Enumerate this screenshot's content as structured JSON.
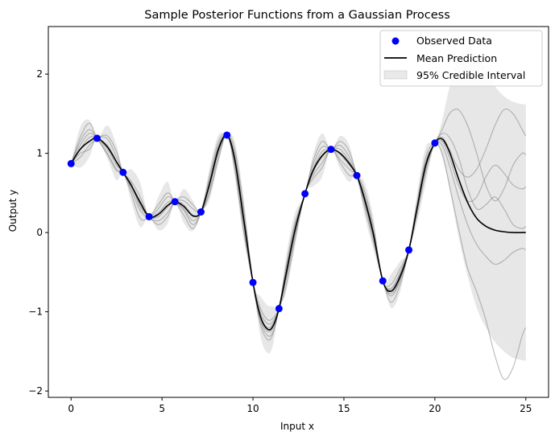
{
  "chart_data": {
    "type": "line",
    "title": "Sample Posterior Functions from a Gaussian Process",
    "xlabel": "Input x",
    "ylabel": "Output y",
    "xlim": [
      -1.25,
      26.25
    ],
    "ylim": [
      -2.08,
      2.6
    ],
    "xticks": [
      0,
      5,
      10,
      15,
      20,
      25
    ],
    "yticks": [
      -2,
      -1,
      0,
      1,
      2
    ],
    "ytick_labels": [
      "−2",
      "−1",
      "0",
      "1",
      "2"
    ],
    "grid": false,
    "legend_position": "top-right",
    "legend": {
      "observed": "Observed Data",
      "mean": "Mean Prediction",
      "interval": "95% Credible Interval"
    },
    "colors": {
      "observed": "#0000ff",
      "mean": "#000000",
      "samples": "#7f7f7f",
      "interval": "#d3d3d3"
    },
    "series": [
      {
        "name": "Observed Data",
        "kind": "scatter",
        "x": [
          0.0,
          1.43,
          2.86,
          4.29,
          5.71,
          7.14,
          8.57,
          10.0,
          11.43,
          12.86,
          14.29,
          15.71,
          17.14,
          18.57,
          20.0
        ],
        "y": [
          0.87,
          1.19,
          0.76,
          0.2,
          0.39,
          0.26,
          1.23,
          -0.63,
          -0.96,
          0.49,
          1.05,
          0.72,
          -0.61,
          -0.22,
          1.13
        ]
      },
      {
        "name": "Mean Prediction",
        "kind": "line",
        "x": [
          0,
          0.5,
          1.0,
          1.43,
          2.0,
          2.5,
          2.86,
          3.3,
          3.8,
          4.29,
          4.8,
          5.3,
          5.71,
          6.2,
          6.7,
          7.14,
          7.6,
          8.1,
          8.57,
          9.0,
          9.5,
          10.0,
          10.4,
          10.8,
          11.1,
          11.43,
          11.8,
          12.3,
          12.86,
          13.3,
          13.8,
          14.29,
          14.8,
          15.3,
          15.71,
          16.1,
          16.6,
          17.14,
          17.6,
          18.1,
          18.57,
          19.0,
          19.5,
          20.0,
          20.4,
          20.8,
          21.3,
          21.8,
          22.3,
          22.8,
          23.3,
          23.8,
          24.3,
          24.8,
          25.0
        ],
        "y": [
          0.87,
          1.05,
          1.15,
          1.19,
          1.08,
          0.89,
          0.76,
          0.6,
          0.38,
          0.2,
          0.23,
          0.34,
          0.39,
          0.33,
          0.21,
          0.26,
          0.6,
          1.05,
          1.23,
          0.92,
          0.15,
          -0.63,
          -1.05,
          -1.22,
          -1.18,
          -0.96,
          -0.55,
          0.02,
          0.49,
          0.78,
          0.97,
          1.05,
          1.0,
          0.87,
          0.72,
          0.45,
          0.0,
          -0.61,
          -0.74,
          -0.55,
          -0.22,
          0.28,
          0.85,
          1.13,
          1.18,
          1.02,
          0.68,
          0.38,
          0.18,
          0.08,
          0.03,
          0.01,
          0.0,
          0.0,
          0.0
        ]
      },
      {
        "name": "95% Credible Interval",
        "kind": "band",
        "x": [
          0,
          0.5,
          1.0,
          1.43,
          2.0,
          2.5,
          2.86,
          3.3,
          3.8,
          4.29,
          4.8,
          5.3,
          5.71,
          6.2,
          6.7,
          7.14,
          7.6,
          8.1,
          8.57,
          9.0,
          9.5,
          10.0,
          10.4,
          10.8,
          11.1,
          11.43,
          11.8,
          12.3,
          12.86,
          13.3,
          13.8,
          14.29,
          14.8,
          15.3,
          15.71,
          16.1,
          16.6,
          17.14,
          17.6,
          18.1,
          18.57,
          19.0,
          19.5,
          20.0,
          20.4,
          20.8,
          21.3,
          21.8,
          22.3,
          22.8,
          23.3,
          23.8,
          24.3,
          24.8,
          25.0
        ],
        "lower": [
          0.87,
          0.82,
          0.95,
          1.19,
          0.93,
          0.66,
          0.76,
          0.4,
          0.07,
          0.2,
          0.03,
          0.11,
          0.39,
          0.12,
          0.02,
          0.26,
          0.4,
          0.88,
          1.23,
          0.7,
          -0.1,
          -0.63,
          -1.3,
          -1.52,
          -1.42,
          -0.96,
          -0.77,
          -0.2,
          0.49,
          0.58,
          0.7,
          1.05,
          0.8,
          0.64,
          0.72,
          0.25,
          -0.2,
          -0.61,
          -0.95,
          -0.74,
          -0.22,
          0.1,
          0.62,
          1.13,
          0.95,
          0.55,
          -0.05,
          -0.55,
          -0.95,
          -1.2,
          -1.38,
          -1.5,
          -1.58,
          -1.61,
          -1.62
        ],
        "upper": [
          0.87,
          1.33,
          1.42,
          1.19,
          1.35,
          1.1,
          0.76,
          0.8,
          0.63,
          0.2,
          0.45,
          0.64,
          0.39,
          0.55,
          0.4,
          0.26,
          0.8,
          1.23,
          1.23,
          1.15,
          0.42,
          -0.63,
          -0.8,
          -0.92,
          -0.93,
          -0.96,
          -0.33,
          0.24,
          0.49,
          0.98,
          1.25,
          1.05,
          1.22,
          1.1,
          0.72,
          0.65,
          0.22,
          -0.61,
          -0.52,
          -0.36,
          -0.22,
          0.46,
          1.08,
          1.13,
          1.42,
          1.83,
          2.2,
          2.35,
          2.25,
          2.05,
          1.85,
          1.72,
          1.65,
          1.62,
          1.62
        ]
      },
      {
        "kind": "sample",
        "x": [
          0,
          0.5,
          1.0,
          1.43,
          2.0,
          2.5,
          2.86,
          3.3,
          3.8,
          4.29,
          4.8,
          5.3,
          5.71,
          6.2,
          6.7,
          7.14,
          7.6,
          8.1,
          8.57,
          9.0,
          9.5,
          10.0,
          10.4,
          10.8,
          11.1,
          11.43,
          11.8,
          12.3,
          12.86,
          13.3,
          13.8,
          14.29,
          14.8,
          15.3,
          15.71,
          16.1,
          16.6,
          17.14,
          17.6,
          18.1,
          18.57,
          19.0,
          19.5,
          20.0,
          20.4,
          20.8,
          21.3,
          21.8,
          22.3,
          22.8,
          23.3,
          23.8,
          24.3,
          24.8,
          25.0
        ],
        "y": [
          0.87,
          1.15,
          1.3,
          1.19,
          1.0,
          0.8,
          0.76,
          0.55,
          0.28,
          0.2,
          0.3,
          0.45,
          0.39,
          0.28,
          0.1,
          0.26,
          0.7,
          1.15,
          1.23,
          0.98,
          0.22,
          -0.63,
          -1.1,
          -1.3,
          -1.25,
          -0.96,
          -0.5,
          0.08,
          0.49,
          0.85,
          1.08,
          1.05,
          1.1,
          0.95,
          0.72,
          0.4,
          -0.05,
          -0.61,
          -0.8,
          -0.6,
          -0.22,
          0.3,
          0.9,
          1.13,
          1.3,
          1.5,
          1.55,
          1.35,
          1.0,
          0.6,
          0.4,
          0.55,
          0.85,
          1.0,
          0.98
        ]
      },
      {
        "kind": "sample",
        "x": [
          0,
          0.5,
          1.0,
          1.43,
          2.0,
          2.5,
          2.86,
          3.3,
          3.8,
          4.29,
          4.8,
          5.3,
          5.71,
          6.2,
          6.7,
          7.14,
          7.6,
          8.1,
          8.57,
          9.0,
          9.5,
          10.0,
          10.4,
          10.8,
          11.1,
          11.43,
          11.8,
          12.3,
          12.86,
          13.3,
          13.8,
          14.29,
          14.8,
          15.3,
          15.71,
          16.1,
          16.6,
          17.14,
          17.6,
          18.1,
          18.57,
          19.0,
          19.5,
          20.0,
          20.4,
          20.8,
          21.3,
          21.8,
          22.3,
          22.8,
          23.3,
          23.8,
          24.3,
          24.8,
          25.0
        ],
        "y": [
          0.87,
          1.0,
          1.05,
          1.19,
          1.18,
          0.95,
          0.76,
          0.65,
          0.45,
          0.2,
          0.15,
          0.25,
          0.39,
          0.4,
          0.3,
          0.26,
          0.52,
          0.98,
          1.23,
          0.85,
          0.05,
          -0.63,
          -1.0,
          -1.15,
          -1.12,
          -0.96,
          -0.62,
          -0.05,
          0.49,
          0.72,
          0.88,
          1.05,
          0.92,
          0.8,
          0.72,
          0.5,
          0.05,
          -0.61,
          -0.7,
          -0.5,
          -0.22,
          0.25,
          0.8,
          1.13,
          1.1,
          0.85,
          0.45,
          0.1,
          -0.15,
          -0.3,
          -0.4,
          -0.35,
          -0.25,
          -0.2,
          -0.22
        ]
      },
      {
        "kind": "sample",
        "x": [
          0,
          0.5,
          1.0,
          1.43,
          2.0,
          2.5,
          2.86,
          3.3,
          3.8,
          4.29,
          4.8,
          5.3,
          5.71,
          6.2,
          6.7,
          7.14,
          7.6,
          8.1,
          8.57,
          9.0,
          9.5,
          10.0,
          10.4,
          10.8,
          11.1,
          11.43,
          11.8,
          12.3,
          12.86,
          13.3,
          13.8,
          14.29,
          14.8,
          15.3,
          15.71,
          16.1,
          16.6,
          17.14,
          17.6,
          18.1,
          18.57,
          19.0,
          19.5,
          20.0,
          20.4,
          20.8,
          21.3,
          21.8,
          22.3,
          22.8,
          23.3,
          23.8,
          24.3,
          24.8,
          25.0
        ],
        "y": [
          0.87,
          1.2,
          1.38,
          1.19,
          0.98,
          0.78,
          0.76,
          0.5,
          0.18,
          0.2,
          0.35,
          0.5,
          0.39,
          0.22,
          0.05,
          0.26,
          0.65,
          1.1,
          1.23,
          1.05,
          0.3,
          -0.63,
          -1.15,
          -1.35,
          -1.28,
          -0.96,
          -0.45,
          0.12,
          0.49,
          0.9,
          1.15,
          1.05,
          1.15,
          1.02,
          0.72,
          0.35,
          -0.1,
          -0.61,
          -0.88,
          -0.65,
          -0.22,
          0.35,
          0.95,
          1.13,
          1.0,
          0.6,
          0.05,
          -0.45,
          -0.75,
          -1.1,
          -1.55,
          -1.85,
          -1.7,
          -1.3,
          -1.2
        ]
      },
      {
        "kind": "sample",
        "x": [
          0,
          0.5,
          1.0,
          1.43,
          2.0,
          2.5,
          2.86,
          3.3,
          3.8,
          4.29,
          4.8,
          5.3,
          5.71,
          6.2,
          6.7,
          7.14,
          7.6,
          8.1,
          8.57,
          9.0,
          9.5,
          10.0,
          10.4,
          10.8,
          11.1,
          11.43,
          11.8,
          12.3,
          12.86,
          13.3,
          13.8,
          14.29,
          14.8,
          15.3,
          15.71,
          16.1,
          16.6,
          17.14,
          17.6,
          18.1,
          18.57,
          19.0,
          19.5,
          20.0,
          20.4,
          20.8,
          21.3,
          21.8,
          22.3,
          22.8,
          23.3,
          23.8,
          24.3,
          24.8,
          25.0
        ],
        "y": [
          0.87,
          0.95,
          1.1,
          1.19,
          1.22,
          1.02,
          0.76,
          0.62,
          0.32,
          0.2,
          0.1,
          0.2,
          0.39,
          0.45,
          0.35,
          0.26,
          0.48,
          0.92,
          1.23,
          0.8,
          0.0,
          -0.63,
          -0.95,
          -1.1,
          -1.08,
          -0.96,
          -0.7,
          -0.1,
          0.49,
          0.68,
          0.82,
          1.05,
          0.88,
          0.72,
          0.72,
          0.55,
          0.1,
          -0.61,
          -0.65,
          -0.45,
          -0.22,
          0.2,
          0.75,
          1.13,
          1.2,
          1.05,
          0.8,
          0.7,
          0.8,
          1.05,
          1.35,
          1.55,
          1.5,
          1.3,
          1.22
        ]
      },
      {
        "kind": "sample",
        "x": [
          0,
          0.5,
          1.0,
          1.43,
          2.0,
          2.5,
          2.86,
          3.3,
          3.8,
          4.29,
          4.8,
          5.3,
          5.71,
          6.2,
          6.7,
          7.14,
          7.6,
          8.1,
          8.57,
          9.0,
          9.5,
          10.0,
          10.4,
          10.8,
          11.1,
          11.43,
          11.8,
          12.3,
          12.86,
          13.3,
          13.8,
          14.29,
          14.8,
          15.3,
          15.71,
          16.1,
          16.6,
          17.14,
          17.6,
          18.1,
          18.57,
          19.0,
          19.5,
          20.0,
          20.4,
          20.8,
          21.3,
          21.8,
          22.3,
          22.8,
          23.3,
          23.8,
          24.3,
          24.8,
          25.0
        ],
        "y": [
          0.87,
          1.1,
          1.25,
          1.19,
          1.05,
          0.85,
          0.76,
          0.58,
          0.35,
          0.2,
          0.25,
          0.38,
          0.39,
          0.3,
          0.15,
          0.26,
          0.62,
          1.08,
          1.23,
          0.95,
          0.18,
          -0.63,
          -1.08,
          -1.25,
          -1.2,
          -0.96,
          -0.52,
          0.05,
          0.49,
          0.8,
          1.02,
          1.05,
          1.05,
          0.9,
          0.72,
          0.42,
          -0.02,
          -0.61,
          -0.77,
          -0.58,
          -0.22,
          0.3,
          0.88,
          1.13,
          1.25,
          1.2,
          0.95,
          0.55,
          0.3,
          0.35,
          0.45,
          0.3,
          0.1,
          0.05,
          0.08
        ]
      },
      {
        "kind": "sample",
        "x": [
          0,
          0.5,
          1.0,
          1.43,
          2.0,
          2.5,
          2.86,
          3.3,
          3.8,
          4.29,
          4.8,
          5.3,
          5.71,
          6.2,
          6.7,
          7.14,
          7.6,
          8.1,
          8.57,
          9.0,
          9.5,
          10.0,
          10.4,
          10.8,
          11.1,
          11.43,
          11.8,
          12.3,
          12.86,
          13.3,
          13.8,
          14.29,
          14.8,
          15.3,
          15.71,
          16.1,
          16.6,
          17.14,
          17.6,
          18.1,
          18.57,
          19.0,
          19.5,
          20.0,
          20.4,
          20.8,
          21.3,
          21.8,
          22.3,
          22.8,
          23.3,
          23.8,
          24.3,
          24.8,
          25.0
        ],
        "y": [
          0.87,
          1.05,
          1.2,
          1.19,
          1.1,
          0.9,
          0.76,
          0.6,
          0.4,
          0.2,
          0.2,
          0.32,
          0.39,
          0.35,
          0.22,
          0.26,
          0.58,
          1.02,
          1.23,
          0.9,
          0.12,
          -0.63,
          -1.05,
          -1.2,
          -1.15,
          -0.96,
          -0.58,
          0.0,
          0.49,
          0.76,
          0.95,
          1.05,
          0.98,
          0.85,
          0.72,
          0.46,
          0.02,
          -0.61,
          -0.72,
          -0.52,
          -0.22,
          0.27,
          0.84,
          1.13,
          1.15,
          0.95,
          0.6,
          0.4,
          0.45,
          0.7,
          0.85,
          0.75,
          0.6,
          0.55,
          0.58
        ]
      }
    ]
  }
}
